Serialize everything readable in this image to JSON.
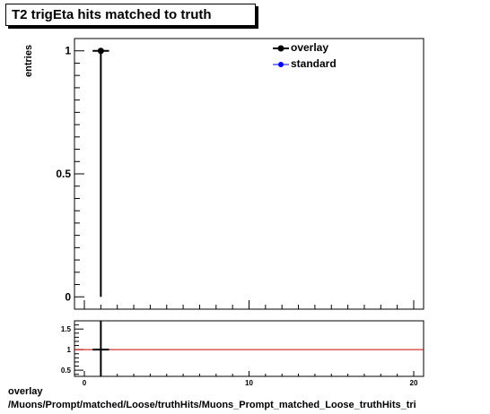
{
  "title": "T2 trigEta hits matched to truth",
  "ylabel": "entries",
  "legend": {
    "items": [
      {
        "label": "overlay",
        "color": "#000000"
      },
      {
        "label": "standard",
        "color": "#0000ff"
      }
    ]
  },
  "footer": {
    "line1": "overlay",
    "line2": "/Muons/Prompt/matched/Loose/truthHits/Muons_Prompt_matched_Loose_truthHits_tri"
  },
  "ratio_line_color": "#cc0000",
  "chart_data": [
    {
      "type": "scatter",
      "title": "T2 trigEta hits matched to truth",
      "ylabel": "entries",
      "xlim": [
        -0.6,
        20.6
      ],
      "ylim": [
        -0.05,
        1.05
      ],
      "y_ticks": [
        {
          "value": 0,
          "label": "0"
        },
        {
          "value": 0.5,
          "label": "0.5"
        },
        {
          "value": 1,
          "label": "1"
        }
      ],
      "series": [
        {
          "name": "overlay",
          "color": "#000000",
          "points": [
            {
              "x": 1,
              "y": 1,
              "xerr": 0.5,
              "ylow": 0,
              "yhigh": 1
            }
          ]
        },
        {
          "name": "standard",
          "color": "#0000ff",
          "points": []
        }
      ],
      "legend_position": "top-right"
    },
    {
      "type": "line",
      "xlim": [
        -0.6,
        20.6
      ],
      "ylim": [
        0.35,
        1.7
      ],
      "x_ticks": [
        {
          "value": 0,
          "label": "0"
        },
        {
          "value": 10,
          "label": "10"
        },
        {
          "value": 20,
          "label": "20"
        }
      ],
      "y_ticks": [
        {
          "value": 0.5,
          "label": "0.5"
        },
        {
          "value": 1,
          "label": "1"
        },
        {
          "value": 1.5,
          "label": "1.5"
        }
      ],
      "reference_line": 1,
      "points": [
        {
          "x": 1,
          "y": 1,
          "xerr": 0.5
        }
      ]
    }
  ]
}
